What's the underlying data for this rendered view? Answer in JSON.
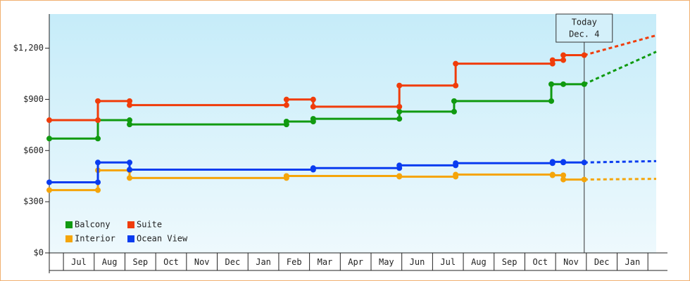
{
  "chart_data": {
    "type": "line",
    "series": [
      {
        "name": "Balcony",
        "color": "#109a10",
        "x": [
          -0.46,
          1.12,
          1.12,
          2.15,
          2.15,
          7.25,
          7.25,
          8.12,
          8.12,
          10.92,
          10.92,
          12.7,
          12.7,
          15.86,
          15.86,
          16.25,
          16.93,
          19.27
        ],
        "values": [
          670,
          670,
          778,
          778,
          753,
          753,
          770,
          770,
          786,
          786,
          828,
          828,
          890,
          890,
          989,
          989,
          989,
          1179
        ]
      },
      {
        "name": "Suite",
        "color": "#f03c0a",
        "x": [
          -0.46,
          1.12,
          1.12,
          2.15,
          2.15,
          7.25,
          7.25,
          8.12,
          8.12,
          10.92,
          10.92,
          12.75,
          12.75,
          15.9,
          15.9,
          16.25,
          16.25,
          16.93,
          19.27
        ],
        "values": [
          778,
          778,
          890,
          890,
          866,
          866,
          899,
          899,
          857,
          857,
          981,
          981,
          1109,
          1109,
          1130,
          1130,
          1159,
          1159,
          1275
        ]
      },
      {
        "name": "Interior",
        "color": "#f5a50a",
        "x": [
          -0.46,
          1.12,
          1.12,
          2.15,
          2.15,
          7.25,
          7.25,
          10.92,
          10.92,
          12.75,
          12.75,
          15.9,
          15.9,
          16.25,
          16.25,
          16.93,
          19.27
        ],
        "values": [
          368,
          368,
          484,
          484,
          439,
          439,
          451,
          451,
          447,
          447,
          459,
          459,
          455,
          455,
          430,
          430,
          434
        ]
      },
      {
        "name": "Ocean View",
        "color": "#0a3cf0",
        "x": [
          -0.46,
          1.12,
          1.12,
          2.15,
          2.15,
          8.12,
          8.12,
          10.92,
          10.92,
          12.75,
          12.75,
          15.9,
          15.9,
          16.25,
          16.25,
          16.93,
          19.27
        ],
        "values": [
          414,
          414,
          530,
          530,
          488,
          488,
          497,
          497,
          513,
          513,
          526,
          526,
          534,
          534,
          530,
          530,
          538
        ]
      }
    ],
    "today": {
      "x": 16.93,
      "label": "Today",
      "date": "Dec. 4"
    },
    "xlim": [
      -0.46,
      19.27
    ],
    "xticks": [
      {
        "value": 0.5,
        "label": "Jul"
      },
      {
        "value": 1.5,
        "label": "Aug"
      },
      {
        "value": 2.5,
        "label": "Sep"
      },
      {
        "value": 3.5,
        "label": "Oct"
      },
      {
        "value": 4.5,
        "label": "Nov"
      },
      {
        "value": 5.5,
        "label": "Dec"
      },
      {
        "value": 6.5,
        "label": "Jan"
      },
      {
        "value": 7.5,
        "label": "Feb"
      },
      {
        "value": 8.5,
        "label": "Mar"
      },
      {
        "value": 9.5,
        "label": "Apr"
      },
      {
        "value": 10.5,
        "label": "May"
      },
      {
        "value": 11.5,
        "label": "Jun"
      },
      {
        "value": 12.5,
        "label": "Jul"
      },
      {
        "value": 13.5,
        "label": "Aug"
      },
      {
        "value": 14.5,
        "label": "Sep"
      },
      {
        "value": 15.5,
        "label": "Oct"
      },
      {
        "value": 16.5,
        "label": "Nov"
      },
      {
        "value": 17.5,
        "label": "Dec"
      },
      {
        "value": 18.5,
        "label": "Jan"
      }
    ],
    "ylim": [
      0,
      1400
    ],
    "yticks": [
      {
        "value": 0,
        "label": "$0"
      },
      {
        "value": 300,
        "label": "$300"
      },
      {
        "value": 600,
        "label": "$600"
      },
      {
        "value": 900,
        "label": "$900"
      },
      {
        "value": 1200,
        "label": "$1,200"
      }
    ]
  }
}
